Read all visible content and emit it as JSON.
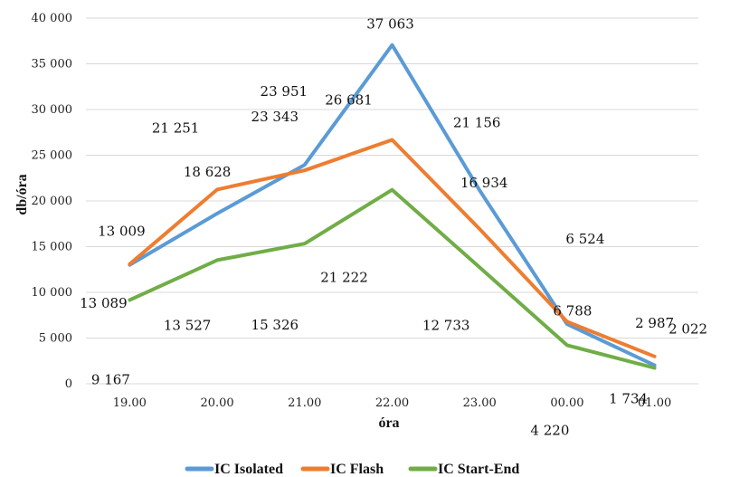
{
  "chart_data": {
    "type": "line",
    "x": [
      "19.00",
      "20.00",
      "21.00",
      "22.00",
      "23.00",
      "00.00",
      "01.00"
    ],
    "ylim": [
      0,
      40000
    ],
    "yticks": [
      0,
      5000,
      10000,
      15000,
      20000,
      25000,
      30000,
      35000,
      40000
    ],
    "ytick_labels": [
      "0",
      "5 000",
      "10 000",
      "15 000",
      "20 000",
      "25 000",
      "30 000",
      "35 000",
      "40 000"
    ],
    "xlabel": "óra",
    "ylabel": "db/óra",
    "grid": "horizontal",
    "legend_position": "bottom",
    "series": [
      {
        "name": "IC Isolated",
        "color": "#5B9BD5",
        "values": [
          13009,
          18628,
          23951,
          37063,
          21156,
          6524,
          2022
        ],
        "labels": [
          "13 009",
          "18 628",
          "23 951",
          "37 063",
          "21 156",
          "6 524",
          "2 022"
        ]
      },
      {
        "name": "IC Flash",
        "color": "#ED7D31",
        "values": [
          13089,
          21251,
          23343,
          26681,
          16934,
          6788,
          2987
        ],
        "labels": [
          "13 089",
          "21 251",
          "23 343",
          "26 681",
          "16 934",
          "6 788",
          "2 987"
        ]
      },
      {
        "name": "IC Start-End",
        "color": "#70AD47",
        "values": [
          9167,
          13527,
          15326,
          21222,
          12733,
          4220,
          1734
        ],
        "labels": [
          "9 167",
          "13 527",
          "15 326",
          "21 222",
          "12 733",
          "4 220",
          "1 734"
        ]
      }
    ]
  }
}
